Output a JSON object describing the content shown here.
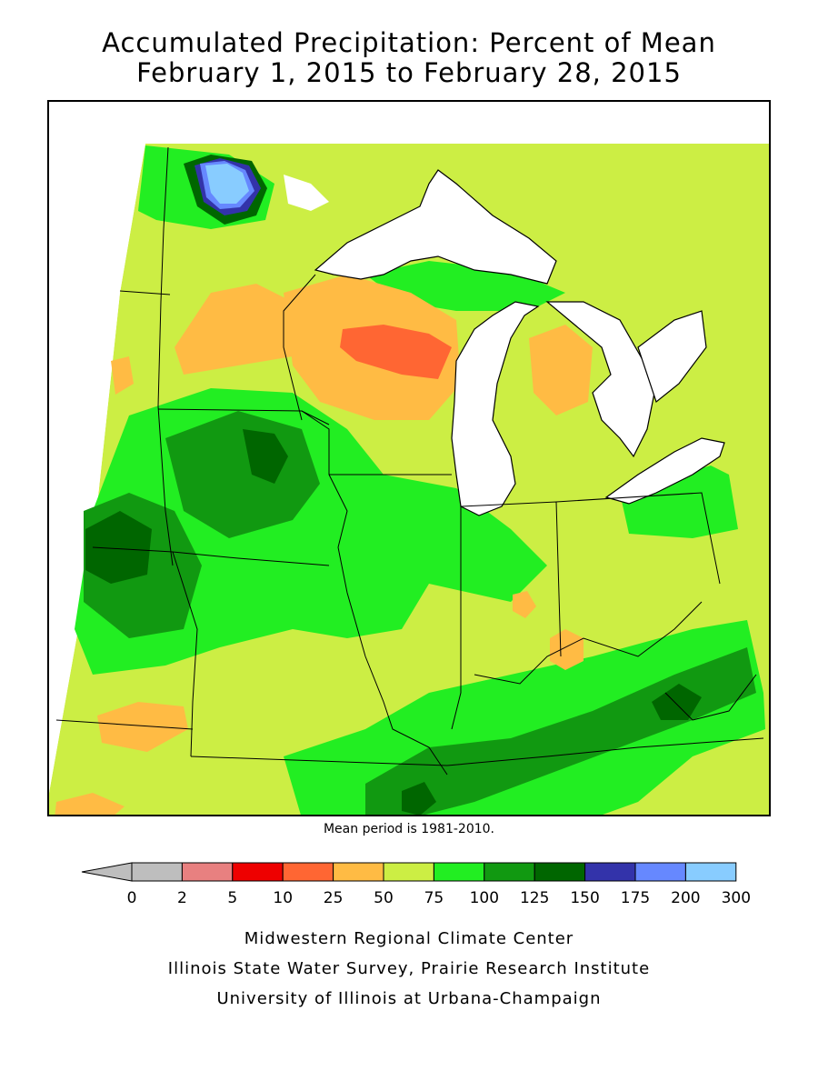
{
  "title": {
    "line1": "Accumulated Precipitation: Percent of Mean",
    "line2": "February 1, 2015 to February 28, 2015"
  },
  "note": "Mean period is 1981-2010.",
  "legend": {
    "ticks": [
      "0",
      "2",
      "5",
      "10",
      "25",
      "50",
      "75",
      "100",
      "125",
      "150",
      "175",
      "200",
      "300"
    ],
    "colors": [
      "#bebebe",
      "#e88080",
      "#ee0000",
      "#ff6633",
      "#ffbb44",
      "#ccee44",
      "#22ee22",
      "#119911",
      "#006600",
      "#3333aa",
      "#6688ff",
      "#88ccff"
    ],
    "below_zero_color": "#bebebe"
  },
  "map_colors": {
    "lake": "#ffffff",
    "p25_50": "#ffbb44",
    "p10_25": "#ff6633",
    "p50_75": "#ccee44",
    "p75_100": "#22ee22",
    "p100_125": "#119911",
    "p125_150": "#006600",
    "p150_175": "#3333aa",
    "p175_200": "#6688ff",
    "p200_300": "#88ccff"
  },
  "footer": {
    "line1": "Midwestern Regional Climate Center",
    "line2": "Illinois State Water Survey, Prairie Research Institute",
    "line3": "University of Illinois at Urbana-Champaign"
  }
}
